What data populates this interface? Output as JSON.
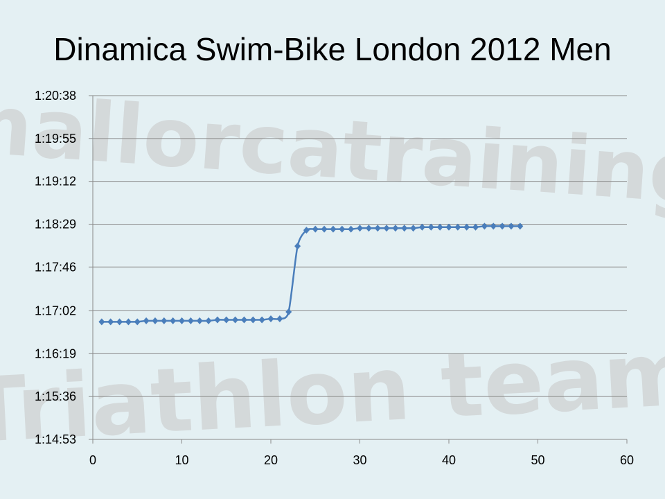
{
  "watermark": {
    "line1": "mallorcatraining",
    "line2": "Triathlon team"
  },
  "chart_data": {
    "type": "line",
    "title": "Dinamica Swim-Bike London 2012 Men",
    "xlabel": "",
    "ylabel": "",
    "xlim": [
      0,
      60
    ],
    "xticks": [
      0,
      10,
      20,
      30,
      40,
      50,
      60
    ],
    "ylim": [
      "1:14:53",
      "1:20:38"
    ],
    "yticks": [
      "1:14:53",
      "1:15:36",
      "1:16:19",
      "1:17:02",
      "1:17:46",
      "1:18:29",
      "1:19:12",
      "1:19:55",
      "1:20:38"
    ],
    "grid": true,
    "legend": "none",
    "marker": "diamond",
    "color": "#4a7ebb",
    "series": [
      {
        "x": [
          1,
          2,
          3,
          4,
          5,
          6,
          7,
          8,
          9,
          10,
          11,
          12,
          13,
          14,
          15,
          16,
          17,
          18,
          19,
          20,
          21,
          22,
          23,
          24,
          25,
          26,
          27,
          28,
          29,
          30,
          31,
          32,
          33,
          34,
          35,
          36,
          37,
          38,
          39,
          40,
          41,
          42,
          43,
          44,
          45,
          46,
          47,
          48
        ],
        "y": [
          "1:16:51",
          "1:16:51",
          "1:16:51",
          "1:16:51",
          "1:16:51",
          "1:16:52",
          "1:16:52",
          "1:16:52",
          "1:16:52",
          "1:16:52",
          "1:16:52",
          "1:16:52",
          "1:16:52",
          "1:16:53",
          "1:16:53",
          "1:16:53",
          "1:16:53",
          "1:16:53",
          "1:16:53",
          "1:16:54",
          "1:16:54",
          "1:17:01",
          "1:18:07",
          "1:18:23",
          "1:18:24",
          "1:18:24",
          "1:18:24",
          "1:18:24",
          "1:18:24",
          "1:18:25",
          "1:18:25",
          "1:18:25",
          "1:18:25",
          "1:18:25",
          "1:18:25",
          "1:18:25",
          "1:18:26",
          "1:18:26",
          "1:18:26",
          "1:18:26",
          "1:18:26",
          "1:18:26",
          "1:18:26",
          "1:18:27",
          "1:18:27",
          "1:18:27",
          "1:18:27",
          "1:18:27"
        ]
      }
    ]
  }
}
